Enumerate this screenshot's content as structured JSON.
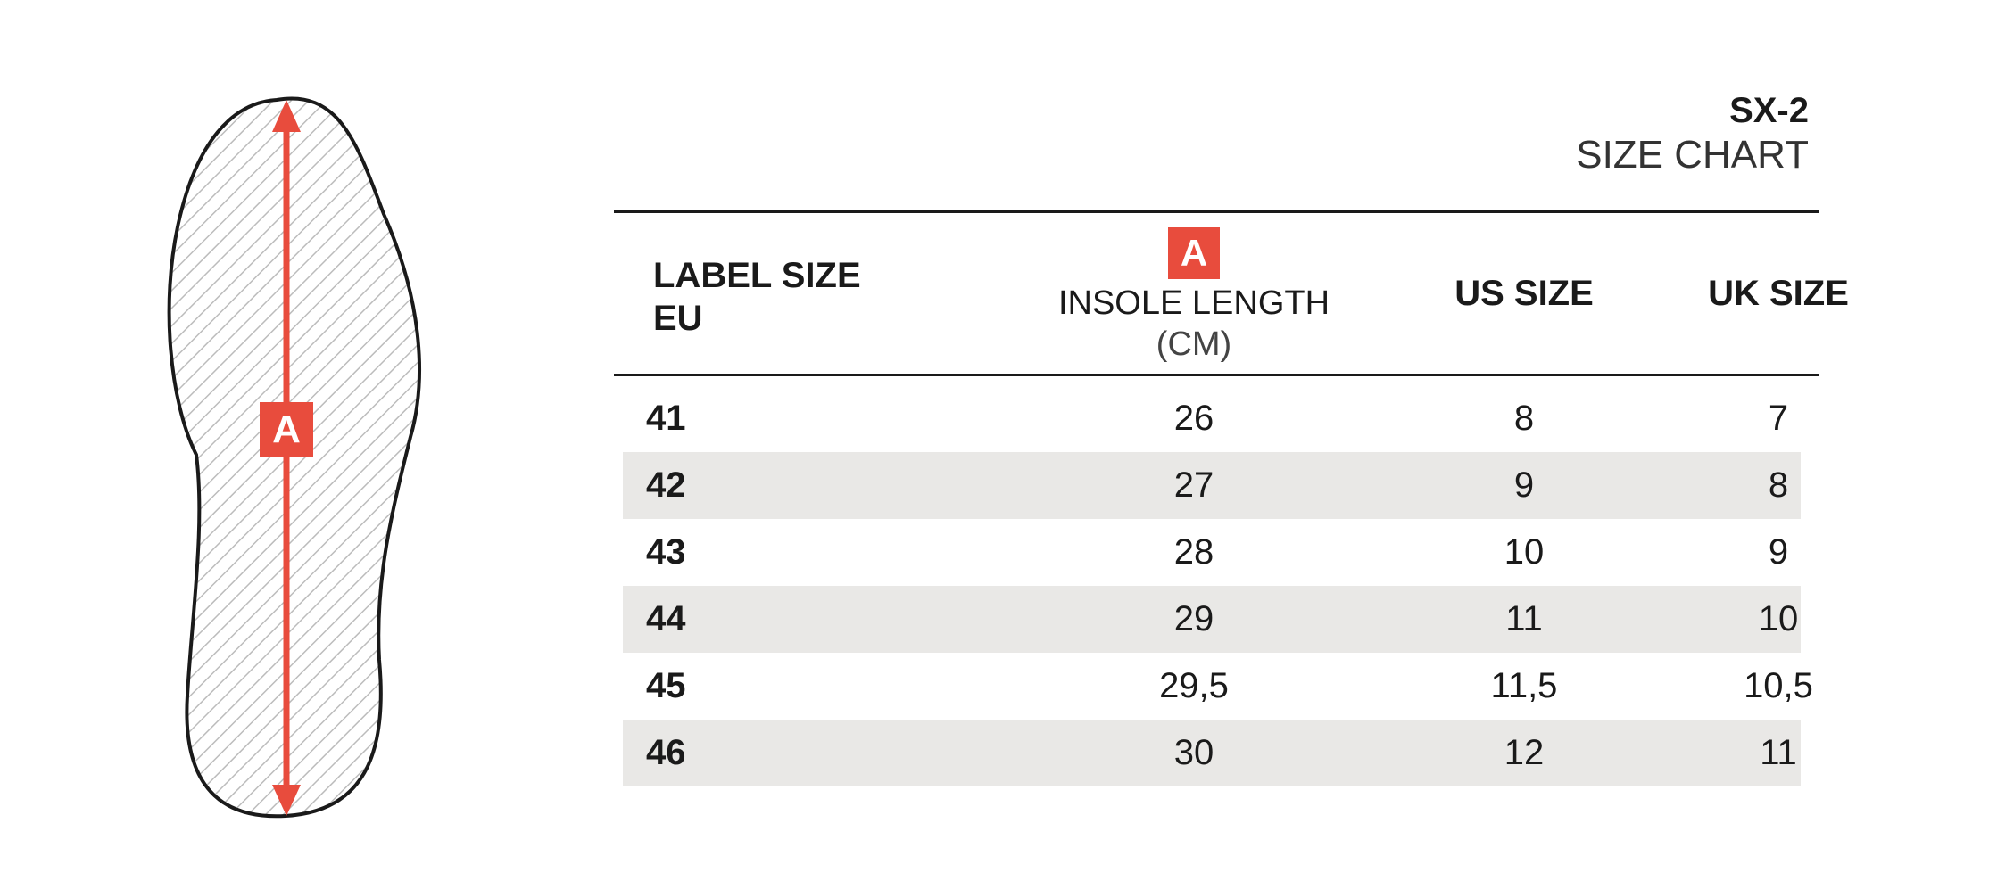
{
  "title": {
    "model": "SX-2",
    "subtitle": "SIZE CHART"
  },
  "figure": {
    "marker_letter": "A",
    "accent_color": "#e84c3d",
    "outline_color": "#1a1a1a",
    "hatch_color": "#bcbcbc"
  },
  "table": {
    "headers": {
      "label_size_line1": "LABEL SIZE",
      "label_size_line2": "EU",
      "insole_badge": "A",
      "insole_label": "INSOLE LENGTH",
      "insole_unit": "(CM)",
      "us_size": "US SIZE",
      "uk_size": "UK SIZE"
    },
    "row_shade_color": "#e9e8e6",
    "rows": [
      {
        "eu": "41",
        "insole": "26",
        "us": "8",
        "uk": "7"
      },
      {
        "eu": "42",
        "insole": "27",
        "us": "9",
        "uk": "8"
      },
      {
        "eu": "43",
        "insole": "28",
        "us": "10",
        "uk": "9"
      },
      {
        "eu": "44",
        "insole": "29",
        "us": "11",
        "uk": "10"
      },
      {
        "eu": "45",
        "insole": "29,5",
        "us": "11,5",
        "uk": "10,5"
      },
      {
        "eu": "46",
        "insole": "30",
        "us": "12",
        "uk": "11"
      }
    ]
  }
}
